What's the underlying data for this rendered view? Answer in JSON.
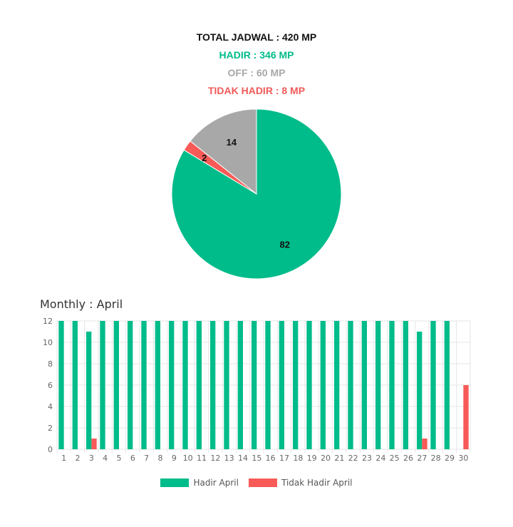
{
  "summary": {
    "total": "TOTAL JADWAL : 420 MP",
    "hadir": "HADIR : 346 MP",
    "off": "OFF : 60 MP",
    "tidak_hadir": "TIDAK HADIR : 8 MP"
  },
  "colors": {
    "hadir": "#00bc8a",
    "off": "#a8a8a8",
    "tidak_hadir": "#f75a57"
  },
  "chart_data": [
    {
      "type": "pie",
      "slices": [
        {
          "label": "",
          "value": 82,
          "color": "#00bc8a"
        },
        {
          "label": "",
          "value": 2,
          "color": "#f75a57"
        },
        {
          "label": "",
          "value": 14,
          "color": "#a8a8a8"
        }
      ]
    },
    {
      "type": "bar",
      "title": "Monthly : April",
      "categories": [
        "1",
        "2",
        "3",
        "4",
        "5",
        "6",
        "7",
        "8",
        "9",
        "10",
        "11",
        "12",
        "13",
        "14",
        "15",
        "16",
        "17",
        "18",
        "19",
        "20",
        "21",
        "22",
        "23",
        "24",
        "25",
        "26",
        "27",
        "28",
        "29",
        "30"
      ],
      "series": [
        {
          "name": "Hadir April",
          "color": "#00bc8a",
          "values": [
            12,
            12,
            11,
            12,
            12,
            12,
            12,
            12,
            12,
            12,
            12,
            12,
            12,
            12,
            12,
            12,
            12,
            12,
            12,
            12,
            12,
            12,
            12,
            12,
            12,
            12,
            11,
            12,
            12,
            0
          ]
        },
        {
          "name": "Tidak Hadir April",
          "color": "#f75a57",
          "values": [
            0,
            0,
            1,
            0,
            0,
            0,
            0,
            0,
            0,
            0,
            0,
            0,
            0,
            0,
            0,
            0,
            0,
            0,
            0,
            0,
            0,
            0,
            0,
            0,
            0,
            0,
            1,
            0,
            0,
            6
          ]
        }
      ],
      "ylim": [
        0,
        12
      ],
      "yticks": [
        0,
        2,
        4,
        6,
        8,
        10,
        12
      ],
      "grid": true,
      "legend": "bottom"
    }
  ]
}
